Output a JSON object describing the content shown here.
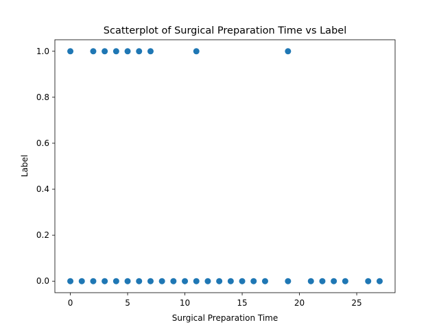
{
  "chart_data": {
    "type": "scatter",
    "title": "Scatterplot of Surgical Preparation Time vs Label",
    "xlabel": "Surgical Preparation Time",
    "ylabel": "Label",
    "xlim": [
      -1.35,
      28.35
    ],
    "ylim": [
      -0.05,
      1.05
    ],
    "x_ticks": [
      0,
      5,
      10,
      15,
      20,
      25
    ],
    "x_tick_labels": [
      "0",
      "5",
      "10",
      "15",
      "20",
      "25"
    ],
    "y_ticks": [
      0.0,
      0.2,
      0.4,
      0.6,
      0.8,
      1.0
    ],
    "y_tick_labels": [
      "0.0",
      "0.2",
      "0.4",
      "0.6",
      "0.8",
      "1.0"
    ],
    "grid": false,
    "legend": false,
    "marker_color": "#1f77b4",
    "series": [
      {
        "x": [
          0,
          2,
          3,
          4,
          5,
          6,
          7,
          11,
          19,
          0,
          1,
          2,
          3,
          4,
          5,
          6,
          7,
          8,
          9,
          10,
          11,
          12,
          13,
          14,
          15,
          16,
          17,
          19,
          21,
          22,
          23,
          24,
          26,
          27
        ],
        "y": [
          1,
          1,
          1,
          1,
          1,
          1,
          1,
          1,
          1,
          0,
          0,
          0,
          0,
          0,
          0,
          0,
          0,
          0,
          0,
          0,
          0,
          0,
          0,
          0,
          0,
          0,
          0,
          0,
          0,
          0,
          0,
          0,
          0,
          0
        ]
      }
    ]
  }
}
